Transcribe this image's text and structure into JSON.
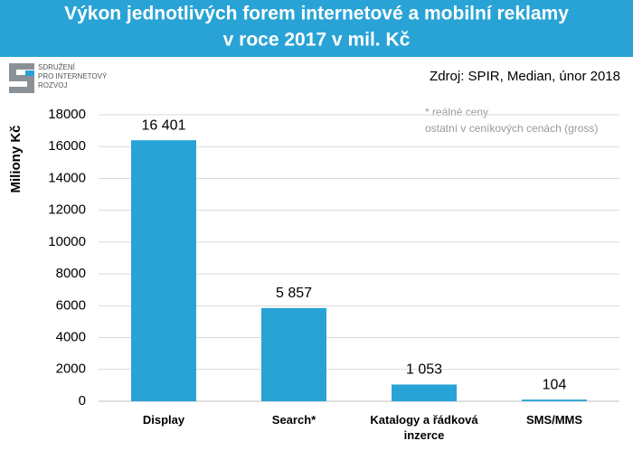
{
  "chart_data": {
    "type": "bar",
    "title": "Výkon jednotlivých forem internetové a mobilní reklamy",
    "subtitle": "v roce 2017 v mil. Kč",
    "source": "Zdroj: SPIR, Median, únor 2018",
    "logo_lines": [
      "SDRUŽENÍ",
      "PRO INTERNETOVÝ",
      "ROZVOJ"
    ],
    "notes": [
      "* reálné ceny",
      "ostatní v ceníkových cenách (gross)"
    ],
    "y_label": "Miliony Kč",
    "categories": [
      "Display",
      "Search*",
      "Katalogy a řádková inzerce",
      "SMS/MMS"
    ],
    "values": [
      16401,
      5857,
      1053,
      104
    ],
    "value_labels": [
      "16 401",
      "5 857",
      "1 053",
      "104"
    ],
    "color": "#29a3d6",
    "ylim": [
      0,
      18000
    ],
    "yticks": [
      0,
      2000,
      4000,
      6000,
      8000,
      10000,
      12000,
      14000,
      16000,
      18000
    ],
    "grid": true
  }
}
